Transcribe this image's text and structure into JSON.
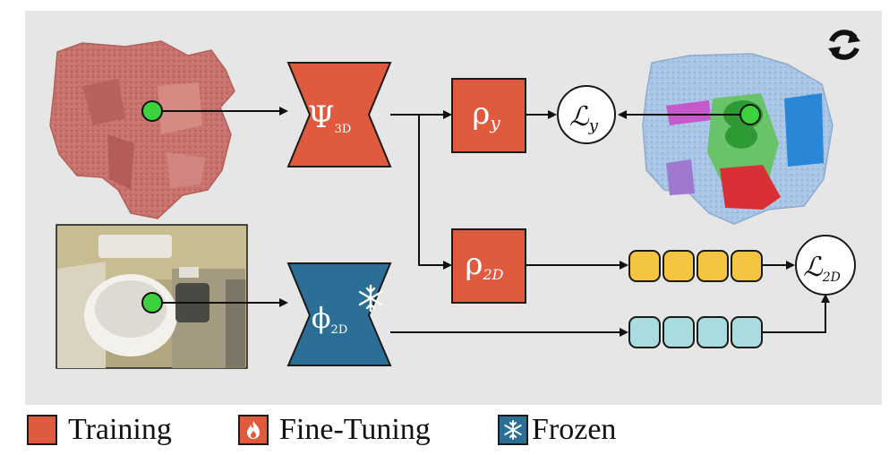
{
  "colors": {
    "panel_bg": "#e6e6e6",
    "training": "#e05a3e",
    "frozen": "#2b6f96",
    "embed_yellow": "#f5c542",
    "embed_cyan": "#a9dcde",
    "point": "#3ed13e",
    "scan_red": "#c9736f",
    "scan_blue": "#a9c6e6"
  },
  "nodes": {
    "psi_3d": {
      "symbol": "Ψ",
      "sub": "3D"
    },
    "phi_2d": {
      "symbol": "ϕ",
      "sub": "2D"
    },
    "rho_y": {
      "symbol": "ρ",
      "sub": "y"
    },
    "rho_2d": {
      "symbol": "ρ",
      "sub": "2D"
    },
    "loss_y": {
      "symbol": "ℒ",
      "sub": "y"
    },
    "loss_2d": {
      "symbol": "ℒ",
      "sub": "2D"
    }
  },
  "icons": {
    "refresh": "refresh-icon",
    "snowflake": "snowflake-icon",
    "flame": "flame-icon"
  },
  "legend": {
    "training": "Training",
    "fine_tuning": "Fine-Tuning",
    "frozen": "Frozen"
  }
}
